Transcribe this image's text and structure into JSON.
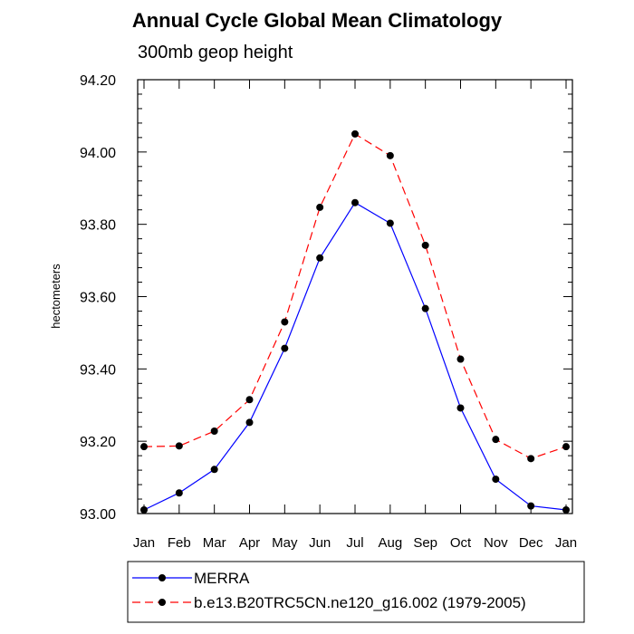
{
  "chart_data": {
    "type": "line",
    "title": "Annual Cycle Global Mean Climatology",
    "subtitle": "300mb geop height",
    "ylabel": "hectometers",
    "xlabel": "",
    "categories": [
      "Jan",
      "Feb",
      "Mar",
      "Apr",
      "May",
      "Jun",
      "Jul",
      "Aug",
      "Sep",
      "Oct",
      "Nov",
      "Dec",
      "Jan"
    ],
    "ylim": [
      93.0,
      94.2
    ],
    "yticks": [
      "93.00",
      "93.20",
      "93.40",
      "93.60",
      "93.80",
      "94.00",
      "94.20"
    ],
    "series": [
      {
        "name": "MERRA",
        "color": "#0000ff",
        "dash": "solid",
        "values": [
          93.01,
          93.057,
          93.122,
          93.252,
          93.457,
          93.707,
          93.86,
          93.803,
          93.567,
          93.292,
          93.095,
          93.021,
          93.01
        ]
      },
      {
        "name": "b.e13.B20TRC5CN.ne120_g16.002 (1979-2005)",
        "color": "#ff0000",
        "dash": "dashed",
        "values": [
          93.185,
          93.187,
          93.228,
          93.315,
          93.53,
          93.847,
          94.05,
          93.99,
          93.742,
          93.427,
          93.205,
          93.152,
          93.185
        ]
      }
    ],
    "marker": "filled-circle",
    "marker_color": "#000000",
    "legend_position": "bottom"
  }
}
